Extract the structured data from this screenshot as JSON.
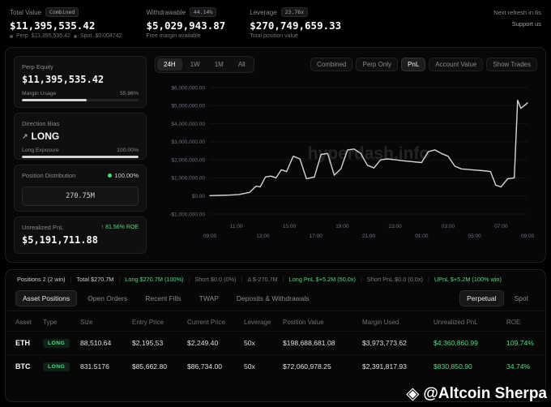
{
  "header": {
    "total_value": {
      "label": "Total Value",
      "badge": "Combined",
      "value": "$11,395,535.42",
      "perp_label": "Perp",
      "perp_value": "$11,395,535.42",
      "spot_label": "Spot",
      "spot_value": "$0.004742"
    },
    "withdrawable": {
      "label": "Withdrawable",
      "badge": "44.14%",
      "value": "$5,029,943.87",
      "sub": "Free margin available"
    },
    "leverage": {
      "label": "Leverage",
      "badge": "23.76x",
      "value": "$270,749,659.33",
      "sub": "Total position value"
    },
    "refresh": "Next refresh in 6s",
    "support": "Support us"
  },
  "sidebar": {
    "perp_equity": {
      "label": "Perp Equity",
      "value": "$11,395,535.42",
      "margin_label": "Margin Usage",
      "margin_pct": "55.86%",
      "margin_pct_num": 55.86
    },
    "direction_bias": {
      "label": "Direction Bias",
      "value": "LONG",
      "exposure_label": "Long Exposure",
      "exposure_pct": "100.00%",
      "exposure_pct_num": 100
    },
    "position_distribution": {
      "label": "Position Distribution",
      "pct": "100.00%",
      "amount": "270.75M"
    },
    "unrealized_pnl": {
      "label": "Unrealized PnL",
      "roe": "81.56% ROE",
      "value": "$5,191,711.88"
    }
  },
  "chart_controls": {
    "ranges": [
      "24H",
      "1W",
      "1M",
      "All"
    ],
    "active_range": "24H",
    "modes": [
      "Combined",
      "Perp Only",
      "PnL",
      "Account Value",
      "Show Trades"
    ],
    "active_mode": "PnL"
  },
  "chart_data": {
    "type": "line",
    "title": "",
    "grid": true,
    "legend_position": "none",
    "y_unit": "USD millions",
    "ylim_millions": [
      -1,
      6
    ],
    "y_ticks": [
      "$6,000,000.00",
      "$5,000,000.00",
      "$4,000,000.00",
      "$3,000,000.00",
      "$2,000,000.00",
      "$1,000,000.00",
      "$0.00",
      "-$1,000,000.00"
    ],
    "x_ticks": [
      "09:00",
      "11:00",
      "13:00",
      "15:00",
      "17:00",
      "19:00",
      "21:00",
      "23:00",
      "01:00",
      "03:00",
      "05:00",
      "07:00",
      "09:00"
    ],
    "series": [
      {
        "name": "PnL",
        "x_hours": [
          0,
          0.7,
          1.5,
          2.2,
          3,
          3.5,
          3.8,
          4.2,
          4.6,
          5,
          5.4,
          5.8,
          6.3,
          6.8,
          7.3,
          7.9,
          8.4,
          8.9,
          9.4,
          9.9,
          10.4,
          10.9,
          11.4,
          11.9,
          12.4,
          12.9,
          13.4,
          14,
          14.6,
          15.3,
          16,
          16.5,
          17,
          17.5,
          18,
          18.5,
          19,
          19.8,
          20.6,
          21.2,
          21.6,
          22,
          22.5,
          23,
          23.25,
          23.5,
          23.75,
          24
        ],
        "values_millions": [
          0.02,
          0.03,
          0.05,
          0.08,
          0.2,
          0.55,
          0.5,
          1.05,
          1.1,
          1.0,
          1.45,
          1.35,
          2.2,
          2.05,
          0.95,
          1.05,
          2.3,
          2.35,
          1.15,
          1.5,
          2.55,
          2.6,
          2.35,
          1.7,
          1.55,
          2.0,
          2.05,
          2.0,
          1.95,
          1.9,
          1.85,
          2.45,
          2.55,
          2.35,
          2.2,
          1.65,
          1.5,
          1.45,
          1.4,
          1.35,
          0.6,
          0.5,
          0.95,
          1.0,
          5.3,
          4.85,
          5.0,
          5.15
        ]
      }
    ]
  },
  "positions_summary": [
    {
      "text": "Positions 2 (2 win)",
      "tone": "light"
    },
    {
      "text": "Total $270.7M",
      "tone": "light"
    },
    {
      "text": "Long $270.7M (100%)",
      "tone": "green"
    },
    {
      "text": "Short $0.0 (0%)",
      "tone": "dim"
    },
    {
      "text": "Δ $-270.7M",
      "tone": "dim"
    },
    {
      "text": "Long PnL $+5.2M (50.0x)",
      "tone": "green"
    },
    {
      "text": "Short PnL $0.0 (0.0x)",
      "tone": "dim"
    },
    {
      "text": "UPnL $+5.2M (100% win)",
      "tone": "green"
    }
  ],
  "positions_tabs": {
    "items": [
      "Asset Positions",
      "Open Orders",
      "Recent Fills",
      "TWAP",
      "Deposits & Withdrawals"
    ],
    "active": "Asset Positions",
    "market": [
      "Perpetual",
      "Spot"
    ],
    "market_active": "Perpetual"
  },
  "table": {
    "headers": [
      "Asset",
      "Type",
      "Size",
      "Entry Price",
      "Current Price",
      "Leverage",
      "Position Value",
      "Margin Used",
      "Unrealized PnL",
      "ROE"
    ],
    "rows": [
      {
        "asset": "ETH",
        "type": "LONG",
        "size": "88,510.64",
        "entry": "$2,195.53",
        "current": "$2,249.40",
        "leverage": "50x",
        "position_value": "$198,688,681.08",
        "margin_used": "$3,973,773.62",
        "upnl": "$4,360,860.99",
        "roe": "109.74%"
      },
      {
        "asset": "BTC",
        "type": "LONG",
        "size": "831.5176",
        "entry": "$85,662.80",
        "current": "$86,734.00",
        "leverage": "50x",
        "position_value": "$72,060,978.25",
        "margin_used": "$2,391,817.93",
        "upnl": "$830,850.90",
        "roe": "34.74%"
      }
    ]
  },
  "watermarks": {
    "chart": "hyperdash.info",
    "overlay": "@Altcoin Sherpa"
  },
  "icons": {
    "diamond_logo": "◈",
    "up_arrow": "↑",
    "trend": "↗"
  },
  "colors": {
    "accent_green": "#4ade80",
    "line": "#d6d6d6",
    "background": "#000000"
  }
}
